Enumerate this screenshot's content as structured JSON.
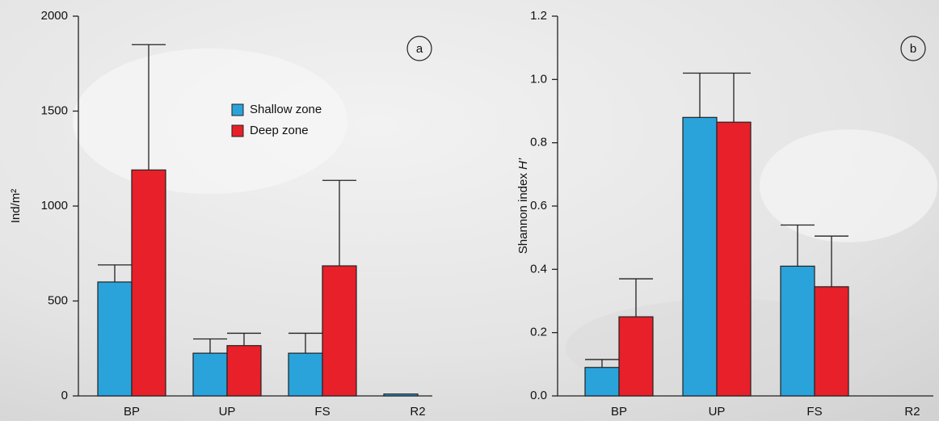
{
  "chart_data": [
    {
      "type": "bar",
      "panel": "a",
      "ylabel": "Ind/m²",
      "categories": [
        "BP",
        "UP",
        "FS",
        "R2"
      ],
      "series": [
        {
          "name": "Shallow zone",
          "color": "#2aa3db",
          "values": [
            600,
            225,
            225,
            10
          ],
          "errors": [
            90,
            75,
            105,
            0
          ]
        },
        {
          "name": "Deep zone",
          "color": "#e8202a",
          "values": [
            1190,
            265,
            685,
            0
          ],
          "errors": [
            660,
            65,
            450,
            0
          ]
        }
      ],
      "ylim": [
        0,
        2000
      ],
      "yticks": [
        0,
        500,
        1000,
        1500,
        2000
      ]
    },
    {
      "type": "bar",
      "panel": "b",
      "ylabel": "Shannon index",
      "ylabel_italic": "H’",
      "categories": [
        "BP",
        "UP",
        "FS",
        "R2"
      ],
      "series": [
        {
          "color": "#2aa3db",
          "values": [
            0.09,
            0.88,
            0.41,
            0
          ],
          "errors": [
            0.025,
            0.14,
            0.13,
            0
          ]
        },
        {
          "color": "#e8202a",
          "values": [
            0.25,
            0.865,
            0.345,
            0
          ],
          "errors": [
            0.12,
            0.155,
            0.16,
            0
          ]
        }
      ],
      "ylim": [
        0,
        1.2
      ],
      "yticks": [
        {
          "value": 0,
          "label": "0.0"
        },
        0.2,
        0.4,
        0.6,
        0.8,
        {
          "value": 1,
          "label": "1.0"
        },
        1.2
      ]
    }
  ]
}
